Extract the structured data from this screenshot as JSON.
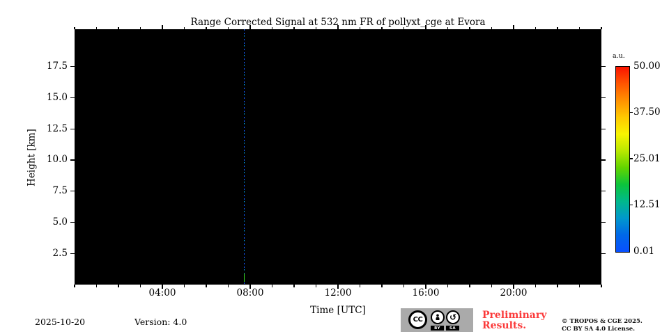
{
  "chart_data": {
    "type": "heatmap",
    "title": "Range Corrected Signal at 532 nm FR of pollyxt_cge at Evora",
    "xlabel": "Time [UTC]",
    "ylabel": "Height [km]",
    "plot_background_color": "#000000",
    "x_axis": {
      "total_hours": 24,
      "minor_tick_interval_hours": 1,
      "major_ticks": [
        {
          "hour": 4,
          "label": "04:00"
        },
        {
          "hour": 8,
          "label": "08:00"
        },
        {
          "hour": 12,
          "label": "12:00"
        },
        {
          "hour": 16,
          "label": "16:00"
        },
        {
          "hour": 20,
          "label": "20:00"
        }
      ]
    },
    "y_axis": {
      "unit": "km",
      "min": 0,
      "max": 20.5,
      "major_ticks": [
        17.5,
        15.0,
        12.5,
        10.0,
        7.5,
        5.0,
        2.5
      ],
      "tick_labels": [
        "17.5",
        "15.0",
        "12.5",
        "10.0",
        "7.5",
        "5.0",
        "2.5"
      ]
    },
    "signal_events": [
      {
        "description": "single narrow dashed vertical lidar profile (only data column in otherwise empty black quicklook)",
        "time_hour": 7.72,
        "time_label": "~07:43 UTC",
        "height_extent_km": [
          0,
          20.5
        ],
        "dash_colors": [
          "#1558ff",
          "#00b8ff"
        ],
        "near_ground_color": "#38d61e"
      }
    ],
    "colorbar": {
      "label": "a.u.",
      "orientation": "vertical",
      "tick_labels": [
        "50.00",
        "37.50",
        "25.01",
        "12.51",
        "0.01"
      ],
      "tick_values": [
        50.0,
        37.5,
        25.01,
        12.51,
        0.01
      ],
      "gradient_top_to_bottom": [
        "#fa1300",
        "#ff5500",
        "#ff9100",
        "#ffc900",
        "#f8f400",
        "#b9e800",
        "#62d400",
        "#0cc43c",
        "#00b88c",
        "#0098cc",
        "#0068e8",
        "#0850ff"
      ]
    }
  },
  "footer": {
    "date": "2025-10-20",
    "version": "Version: 4.0",
    "license_badge": {
      "cc_label": "CC",
      "by_label": "BY",
      "sa_label": "SA",
      "sa_glyph": "↺"
    },
    "preliminary_line1": "Preliminary",
    "preliminary_line2": "Results.",
    "preliminary_color": "#fb3b3b",
    "copyright_line1": "© TROPOS & CGE 2025.",
    "copyright_line2": "CC BY SA 4.0 License."
  }
}
